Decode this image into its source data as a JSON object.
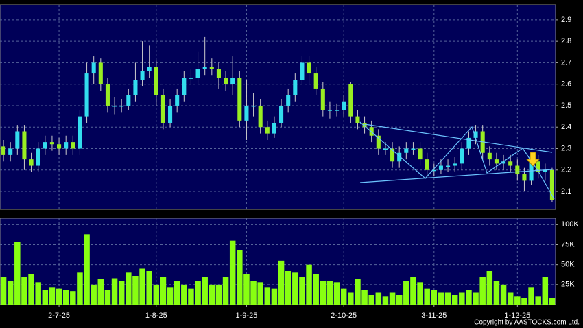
{
  "chart_data": [
    {
      "type": "candlestick",
      "up_color": "#33ddee",
      "down_color": "#99ee22",
      "xlim": [
        0,
        80
      ],
      "xticks": [
        {
          "value": 8,
          "label": "2-7-25"
        },
        {
          "value": 22,
          "label": "1-8-25"
        },
        {
          "value": 35,
          "label": "1-9-25"
        },
        {
          "value": 49,
          "label": "2-10-25"
        },
        {
          "value": 62,
          "label": "3-11-25"
        },
        {
          "value": 74,
          "label": "1-12-25"
        }
      ],
      "ylim": [
        2.017,
        2.97
      ],
      "yticks": [
        2.1,
        2.2,
        2.3,
        2.4,
        2.5,
        2.6,
        2.7,
        2.8,
        2.9
      ],
      "grid": true,
      "open": [
        2.31,
        2.27,
        2.3,
        2.38,
        2.25,
        2.22,
        2.3,
        2.33,
        2.32,
        2.3,
        2.33,
        2.3,
        2.45,
        2.65,
        2.7,
        2.6,
        2.5,
        2.5,
        2.5,
        2.55,
        2.62,
        2.66,
        2.68,
        2.55,
        2.42,
        2.5,
        2.55,
        2.63,
        2.63,
        2.67,
        2.68,
        2.67,
        2.63,
        2.6,
        2.63,
        2.43,
        2.5,
        2.5,
        2.4,
        2.37,
        2.42,
        2.5,
        2.55,
        2.62,
        2.7,
        2.65,
        2.58,
        2.48,
        2.48,
        2.48,
        2.6,
        2.45,
        2.42,
        2.4,
        2.36,
        2.3,
        2.3,
        2.24,
        2.28,
        2.3,
        2.3,
        2.25,
        2.2,
        2.2,
        2.22,
        2.22,
        2.23,
        2.3,
        2.35,
        2.38,
        2.28,
        2.25,
        2.23,
        2.24,
        2.22,
        2.18,
        2.15,
        2.24,
        2.19,
        2.2
      ],
      "high": [
        2.34,
        2.33,
        2.41,
        2.41,
        2.28,
        2.33,
        2.36,
        2.36,
        2.35,
        2.36,
        2.36,
        2.48,
        2.7,
        2.73,
        2.72,
        2.63,
        2.54,
        2.53,
        2.58,
        2.7,
        2.8,
        2.78,
        2.71,
        2.58,
        2.53,
        2.58,
        2.66,
        2.67,
        2.75,
        2.82,
        2.72,
        2.7,
        2.66,
        2.73,
        2.66,
        2.62,
        2.56,
        2.53,
        2.43,
        2.45,
        2.53,
        2.58,
        2.65,
        2.73,
        2.73,
        2.68,
        2.61,
        2.52,
        2.51,
        2.55,
        2.61,
        2.48,
        2.45,
        2.43,
        2.39,
        2.33,
        2.33,
        2.31,
        2.33,
        2.33,
        2.33,
        2.28,
        2.23,
        2.25,
        2.25,
        2.26,
        2.33,
        2.38,
        2.41,
        2.41,
        2.31,
        2.28,
        2.27,
        2.27,
        2.25,
        2.21,
        2.27,
        2.27,
        2.23,
        2.21
      ],
      "low": [
        2.24,
        2.24,
        2.27,
        2.2,
        2.19,
        2.19,
        2.27,
        2.29,
        2.27,
        2.27,
        2.27,
        2.27,
        2.42,
        2.6,
        2.57,
        2.47,
        2.46,
        2.47,
        2.48,
        2.52,
        2.59,
        2.63,
        2.5,
        2.39,
        2.4,
        2.47,
        2.52,
        2.6,
        2.6,
        2.64,
        2.64,
        2.58,
        2.57,
        2.55,
        2.4,
        2.34,
        2.45,
        2.37,
        2.34,
        2.35,
        2.4,
        2.47,
        2.52,
        2.6,
        2.6,
        2.55,
        2.45,
        2.44,
        2.45,
        2.45,
        2.42,
        2.39,
        2.37,
        2.33,
        2.27,
        2.27,
        2.21,
        2.21,
        2.25,
        2.27,
        2.22,
        2.17,
        2.17,
        2.18,
        2.19,
        2.19,
        2.2,
        2.27,
        2.32,
        2.25,
        2.22,
        2.2,
        2.2,
        2.19,
        2.15,
        2.1,
        2.13,
        2.16,
        2.15,
        2.05
      ],
      "close": [
        2.27,
        2.3,
        2.38,
        2.25,
        2.22,
        2.3,
        2.33,
        2.32,
        2.3,
        2.33,
        2.3,
        2.45,
        2.65,
        2.7,
        2.6,
        2.5,
        2.5,
        2.5,
        2.55,
        2.62,
        2.66,
        2.68,
        2.55,
        2.42,
        2.5,
        2.55,
        2.63,
        2.63,
        2.67,
        2.68,
        2.67,
        2.63,
        2.6,
        2.63,
        2.43,
        2.5,
        2.5,
        2.4,
        2.37,
        2.42,
        2.5,
        2.55,
        2.62,
        2.7,
        2.65,
        2.58,
        2.48,
        2.48,
        2.48,
        2.52,
        2.45,
        2.42,
        2.4,
        2.36,
        2.3,
        2.3,
        2.24,
        2.28,
        2.3,
        2.3,
        2.25,
        2.2,
        2.2,
        2.22,
        2.22,
        2.23,
        2.3,
        2.35,
        2.38,
        2.28,
        2.25,
        2.23,
        2.24,
        2.22,
        2.18,
        2.15,
        2.24,
        2.19,
        2.2,
        2.06
      ]
    },
    {
      "type": "bar",
      "color": "#88ff11",
      "ylim": [
        0,
        108
      ],
      "yticks": [
        {
          "value": 25,
          "label": "25K"
        },
        {
          "value": 50,
          "label": "50K"
        },
        {
          "value": 75,
          "label": "75K"
        },
        {
          "value": 100,
          "label": "100K"
        }
      ],
      "grid": true,
      "values": [
        35,
        30,
        78,
        35,
        38,
        28,
        18,
        22,
        20,
        18,
        17,
        40,
        88,
        25,
        32,
        18,
        33,
        30,
        40,
        36,
        45,
        42,
        25,
        35,
        22,
        30,
        25,
        20,
        30,
        35,
        25,
        25,
        35,
        80,
        68,
        38,
        30,
        28,
        22,
        20,
        55,
        42,
        40,
        35,
        50,
        38,
        30,
        30,
        28,
        20,
        15,
        32,
        18,
        12,
        15,
        10,
        15,
        12,
        30,
        35,
        28,
        20,
        18,
        15,
        15,
        12,
        15,
        18,
        15,
        35,
        42,
        30,
        25,
        15,
        10,
        8,
        22,
        10,
        35,
        8
      ],
      "source": "Copyright by AASTOCKS.com Ltd."
    }
  ]
}
